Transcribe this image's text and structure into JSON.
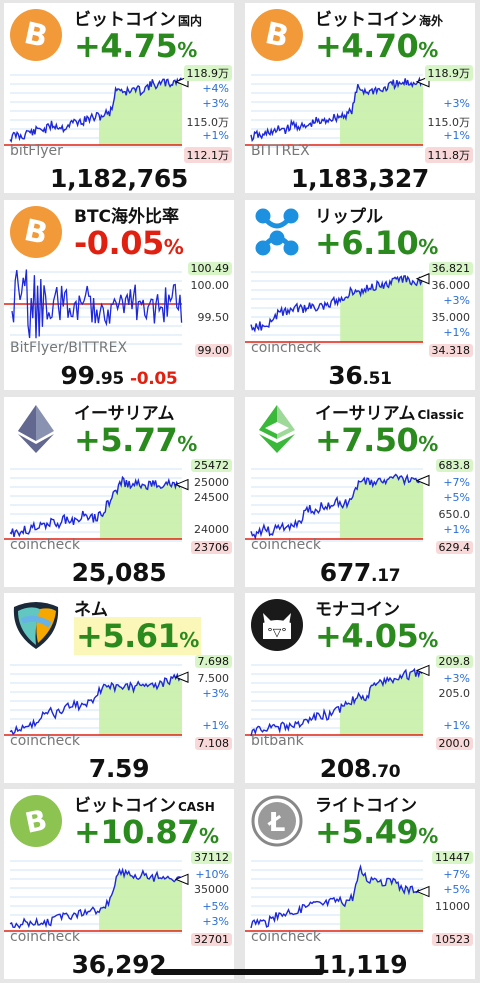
{
  "cards": [
    {
      "title": "ビットコイン",
      "sub": "国内",
      "change": "+4.75",
      "pct": "%",
      "dir": "up",
      "logo": "bitcoin-icon",
      "labels": {
        "top": "118.9万",
        "l1": "+4%",
        "l2": "+3%",
        "l3": "115.0万",
        "l4": "+1%",
        "bottom": "112.1万"
      },
      "source": "bitFlyer",
      "price_int": "1,182,765",
      "price_dec": ""
    },
    {
      "title": "ビットコイン",
      "sub": "海外",
      "change": "+4.70",
      "pct": "%",
      "dir": "up",
      "logo": "bitcoin-icon",
      "labels": {
        "top": "118.9万",
        "l1": "",
        "l2": "+3%",
        "l3": "115.0万",
        "l4": "+1%",
        "bottom": "111.8万"
      },
      "source": "BITTREX",
      "price_int": "1,183,327",
      "price_dec": ""
    },
    {
      "title": "BTC海外比率",
      "sub": "",
      "change": "-0.05",
      "pct": "%",
      "dir": "down",
      "logo": "bitcoin-icon",
      "labels": {
        "top": "100.49",
        "l1": "100.00",
        "l2": "",
        "l3": "99.50",
        "l4": "",
        "bottom": "99.00"
      },
      "source": "BitFlyer/BITTREX",
      "price_int": "99",
      "price_dec": ".95",
      "price_delta": "-0.05"
    },
    {
      "title": "リップル",
      "sub": "",
      "change": "+6.10",
      "pct": "%",
      "dir": "up",
      "logo": "ripple-icon",
      "labels": {
        "top": "36.821",
        "l1": "36.000",
        "l2": "+3%",
        "l3": "35.000",
        "l4": "+1%",
        "bottom": "34.318"
      },
      "source": "coincheck",
      "price_int": "36",
      "price_dec": ".51"
    },
    {
      "title": "イーサリアム",
      "sub": "",
      "change": "+5.77",
      "pct": "%",
      "dir": "up",
      "logo": "ethereum-icon",
      "labels": {
        "top": "25472",
        "l1": "25000",
        "l2": "24500",
        "l3": "",
        "l4": "24000",
        "bottom": "23706"
      },
      "source": "coincheck",
      "price_int": "25,085",
      "price_dec": ""
    },
    {
      "title": "イーサリアム",
      "sub": "Classic",
      "change": "+7.50",
      "pct": "%",
      "dir": "up",
      "logo": "ethereum-classic-icon",
      "labels": {
        "top": "683.8",
        "l1": "+7%",
        "l2": "+5%",
        "l3": "650.0",
        "l4": "+1%",
        "bottom": "629.4"
      },
      "source": "coincheck",
      "price_int": "677",
      "price_dec": ".17"
    },
    {
      "title": "ネム",
      "sub": "",
      "change": "+5.61",
      "pct": "%",
      "dir": "up",
      "hl": true,
      "logo": "nem-icon",
      "labels": {
        "top": "7.698",
        "l1": "7.500",
        "l2": "+3%",
        "l3": "",
        "l4": "+1%",
        "bottom": "7.108"
      },
      "source": "coincheck",
      "price_int": "7.59",
      "price_dec": ""
    },
    {
      "title": "モナコイン",
      "sub": "",
      "change": "+4.05",
      "pct": "%",
      "dir": "up",
      "logo": "monacoin-icon",
      "labels": {
        "top": "209.8",
        "l1": "+3%",
        "l2": "205.0",
        "l3": "",
        "l4": "+1%",
        "bottom": "200.0"
      },
      "source": "bitbank",
      "price_int": "208",
      "price_dec": ".70"
    },
    {
      "title": "ビットコイン",
      "sub": "CASH",
      "change": "+10.87",
      "pct": "%",
      "dir": "up",
      "logo": "bitcoin-cash-icon",
      "labels": {
        "top": "37112",
        "l1": "+10%",
        "l2": "35000",
        "l3": "+5%",
        "l4": "+3%",
        "bottom": "32701"
      },
      "source": "coincheck",
      "price_int": "36,292",
      "price_dec": ""
    },
    {
      "title": "ライトコイン",
      "sub": "",
      "change": "+5.49",
      "pct": "%",
      "dir": "up",
      "logo": "litecoin-icon",
      "labels": {
        "top": "11447",
        "l1": "+7%",
        "l2": "+5%",
        "l3": "11000",
        "l4": "",
        "bottom": "10523"
      },
      "source": "coincheck",
      "price_int": "11,119",
      "price_dec": ""
    }
  ]
}
